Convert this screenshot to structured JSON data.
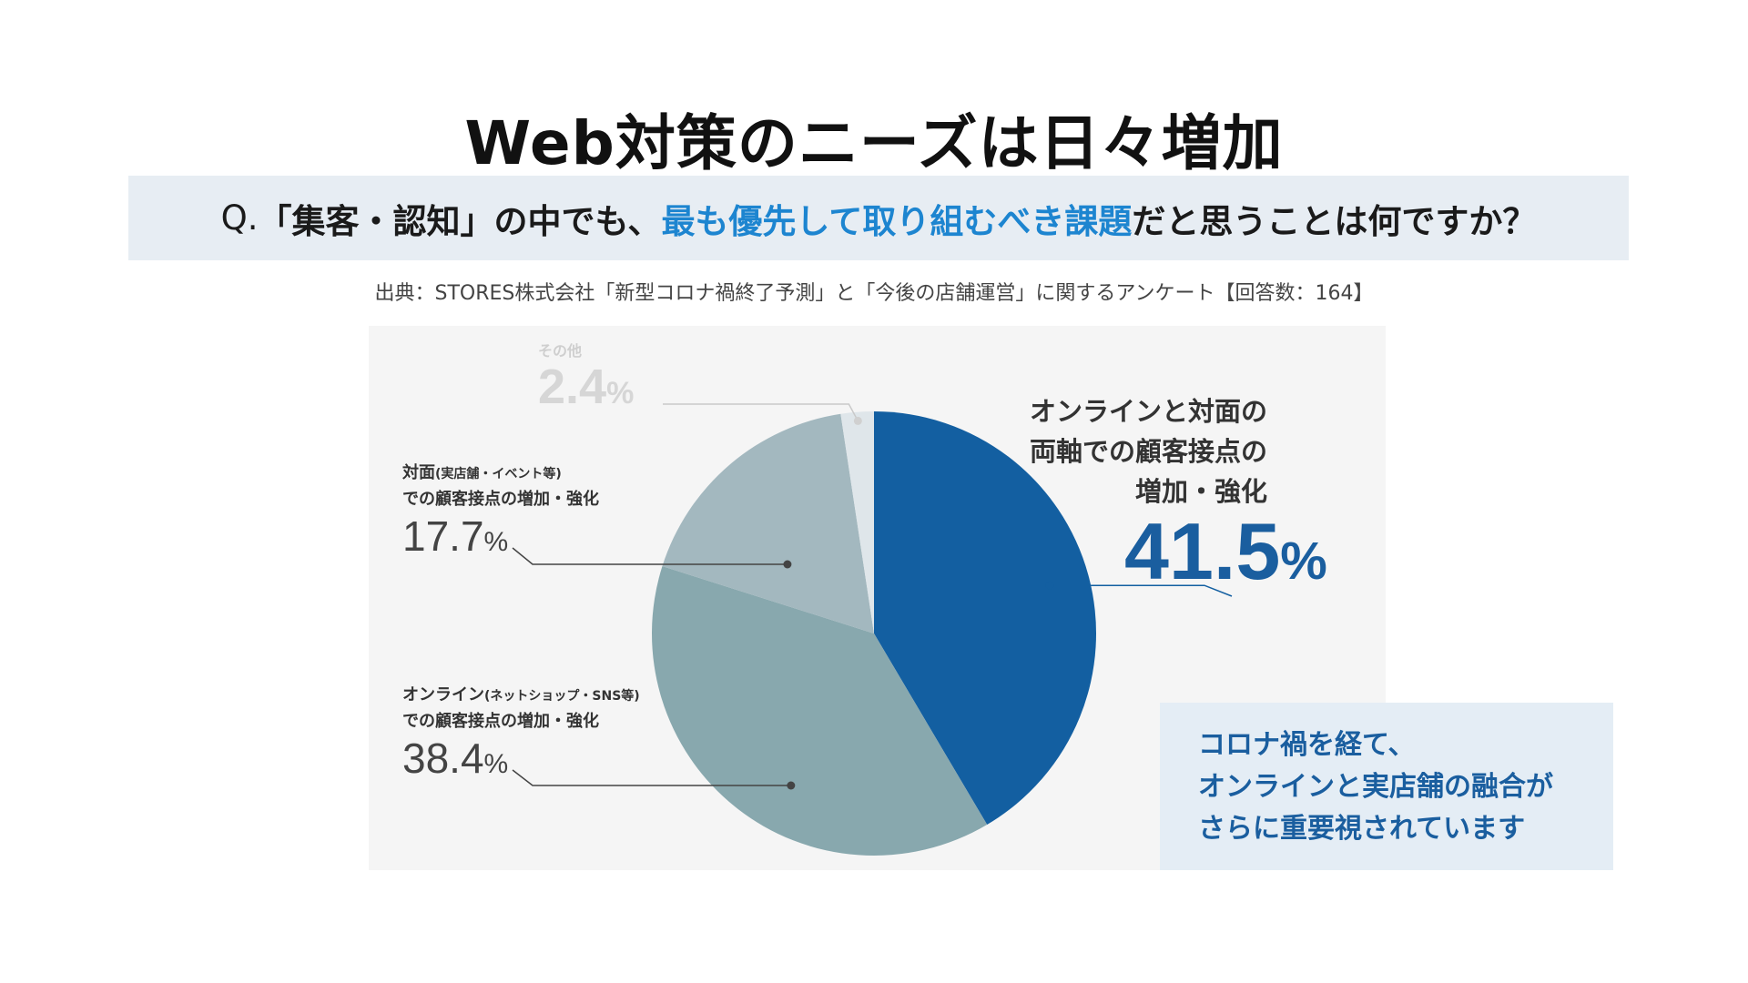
{
  "title": "Web対策のニーズは日々増加",
  "question": {
    "prefix": "Q.",
    "part1": "「集客・認知」の中でも、",
    "highlight": "最も優先して取り組むべき課題",
    "part2": "だと思うことは何ですか？"
  },
  "source": "出典：STORES株式会社「新型コロナ禍終了予測」と「今後の店舗運営」に関するアンケート【回答数：164】",
  "colors": {
    "primary": "#135fa1",
    "highlight_text": "#1d85d0",
    "online_slice": "#88a8ae",
    "offline_slice": "#a3b8bf",
    "other_slice": "#dfe6ea"
  },
  "chart_data": {
    "type": "pie",
    "start_angle_deg": 0,
    "direction": "clockwise",
    "slices": [
      {
        "key": "both",
        "label_lines": [
          "オンラインと対面の",
          "両軸での顧客接点の",
          "増加・強化"
        ],
        "value": 41.5,
        "value_text": "41.5",
        "unit": "%",
        "color": "#135fa1"
      },
      {
        "key": "online",
        "label_main": "オンライン",
        "label_paren": "(ネットショップ・SNS等)",
        "label_line2": "での顧客接点の増加・強化",
        "value": 38.4,
        "value_text": "38.4",
        "unit": "%",
        "color": "#88a8ae"
      },
      {
        "key": "offline",
        "label_main": "対面",
        "label_paren": "(実店舗・イベント等)",
        "label_line2": "での顧客接点の増加・強化",
        "value": 17.7,
        "value_text": "17.7",
        "unit": "%",
        "color": "#a3b8bf"
      },
      {
        "key": "other",
        "label_main": "その他",
        "value": 2.4,
        "value_text": "2.4",
        "unit": "%",
        "color": "#dfe6ea"
      }
    ]
  },
  "callout": {
    "lines": [
      "コロナ禍を経て、",
      "オンラインと実店舗の融合が",
      "さらに重要視されています"
    ]
  }
}
